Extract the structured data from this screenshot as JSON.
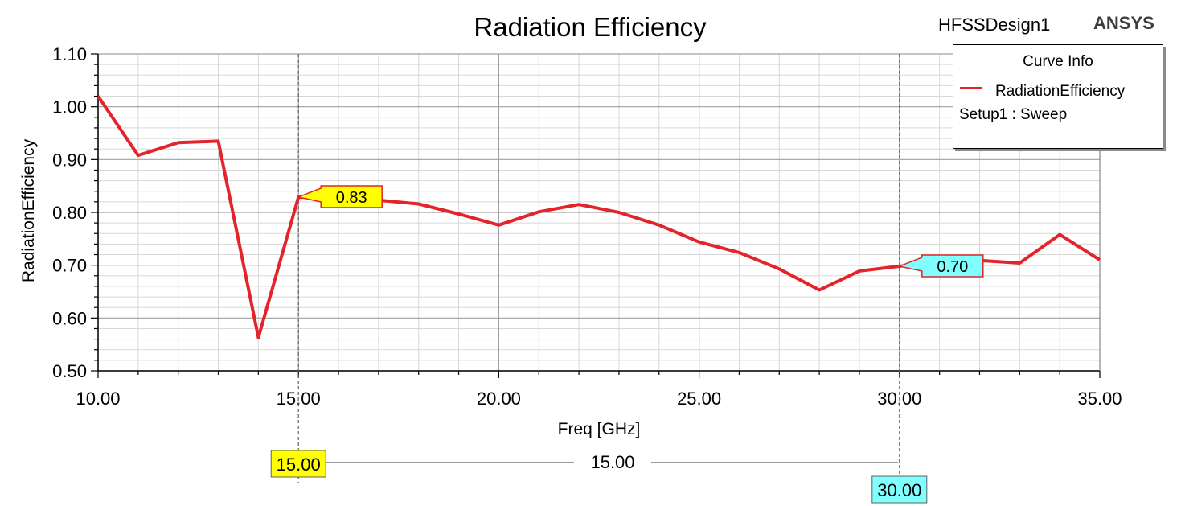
{
  "header": {
    "design_name": "HFSSDesign1",
    "brand": "ANSYS"
  },
  "legend": {
    "title": "Curve Info",
    "series_name": "RadiationEfficiency",
    "setup": "Setup1 : Sweep"
  },
  "markers": [
    {
      "x": 15.0,
      "y_label": "0.83",
      "x_label": "15.00",
      "color": "#ffff00"
    },
    {
      "x": 30.0,
      "y_label": "0.70",
      "x_label": "30.00",
      "color": "#80ffff"
    }
  ],
  "delta_label": "15.00",
  "colors": {
    "series": "#e3242b",
    "grid_major": "#a0a0a0",
    "grid_minor": "#d8d8d8",
    "marker_line": "#606060"
  },
  "chart_data": {
    "type": "line",
    "title": "Radiation Efficiency",
    "xlabel": "Freq [GHz]",
    "ylabel": "RadiationEfficiency",
    "xlim": [
      10,
      35
    ],
    "ylim": [
      0.5,
      1.1
    ],
    "x_ticks": [
      "10.00",
      "15.00",
      "20.00",
      "25.00",
      "30.00",
      "35.00"
    ],
    "y_ticks": [
      "0.50",
      "0.60",
      "0.70",
      "0.80",
      "0.90",
      "1.00",
      "1.10"
    ],
    "grid": true,
    "legend_position": "top-right",
    "series": [
      {
        "name": "RadiationEfficiency",
        "x": [
          10,
          11,
          12,
          13,
          14,
          15,
          16,
          17,
          18,
          19,
          20,
          21,
          22,
          23,
          24,
          25,
          26,
          27,
          28,
          29,
          30,
          31,
          32,
          33,
          34,
          35
        ],
        "y": [
          1.02,
          0.908,
          0.932,
          0.935,
          0.563,
          0.829,
          0.826,
          0.823,
          0.816,
          0.797,
          0.776,
          0.801,
          0.815,
          0.8,
          0.776,
          0.744,
          0.724,
          0.693,
          0.653,
          0.689,
          0.698,
          0.707,
          0.709,
          0.704,
          0.758,
          0.71
        ]
      }
    ]
  }
}
